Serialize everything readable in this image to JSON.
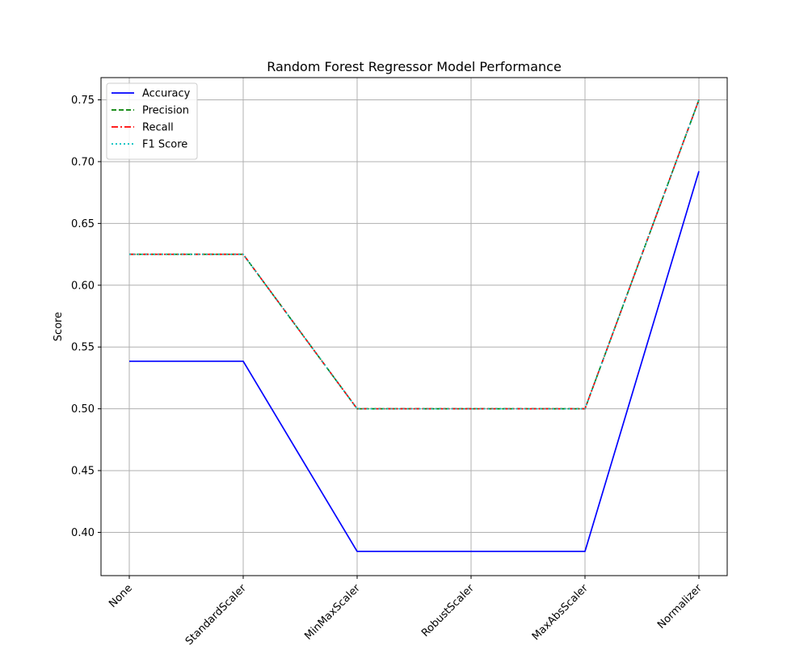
{
  "chart_data": {
    "type": "line",
    "title": "Random Forest Regressor Model Performance",
    "xlabel": "",
    "ylabel": "Score",
    "categories": [
      "None",
      "StandardScaler",
      "MinMaxScaler",
      "RobustScaler",
      "MaxAbsScaler",
      "Normalizer"
    ],
    "ylim": [
      0.365,
      0.768
    ],
    "yticks": [
      0.4,
      0.45,
      0.5,
      0.55,
      0.6,
      0.65,
      0.7,
      0.75
    ],
    "ytick_labels": [
      "0.40",
      "0.45",
      "0.50",
      "0.55",
      "0.60",
      "0.65",
      "0.70",
      "0.75"
    ],
    "grid": true,
    "legend_position": "top-left",
    "series": [
      {
        "name": "Accuracy",
        "color": "#0000ff",
        "linestyle": "solid",
        "values": [
          0.5385,
          0.5385,
          0.3846,
          0.3846,
          0.3846,
          0.6923
        ]
      },
      {
        "name": "Precision",
        "color": "#008000",
        "linestyle": "dashed",
        "values": [
          0.625,
          0.625,
          0.5,
          0.5,
          0.5,
          0.75
        ]
      },
      {
        "name": "Recall",
        "color": "#ff0000",
        "linestyle": "dashdot",
        "values": [
          0.625,
          0.625,
          0.5,
          0.5,
          0.5,
          0.75
        ]
      },
      {
        "name": "F1 Score",
        "color": "#00bfbf",
        "linestyle": "dotted",
        "values": [
          0.625,
          0.625,
          0.5,
          0.5,
          0.5,
          0.75
        ]
      }
    ]
  }
}
